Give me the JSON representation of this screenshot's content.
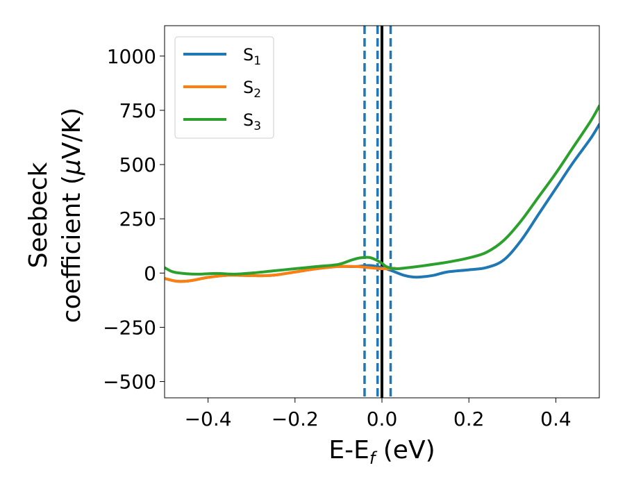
{
  "chart_data": {
    "type": "line",
    "xlabel": "E-E",
    "xlabel_sub": "f",
    "xlabel_unit": " (eV)",
    "ylabel_line1": "Seebeck",
    "ylabel_line2_a": "coefficient  (",
    "ylabel_line2_mu": "μ",
    "ylabel_line2_b": "V/K)",
    "xlim": [
      -0.5,
      0.5
    ],
    "ylim": [
      -575,
      1140
    ],
    "xticks": [
      -0.4,
      -0.2,
      0.0,
      0.2,
      0.4
    ],
    "xtick_labels": [
      "−0.4",
      "−0.2",
      "0.0",
      "0.2",
      "0.4"
    ],
    "yticks": [
      -500,
      -250,
      0,
      250,
      500,
      750,
      1000
    ],
    "ytick_labels": [
      "−500",
      "−250",
      "0",
      "250",
      "500",
      "750",
      "1000"
    ],
    "grid": false,
    "legend": "top-left",
    "series": [
      {
        "name": "S",
        "sub": "1",
        "color": "#1f77b4",
        "x": [
          -0.5,
          -0.47,
          -0.44,
          -0.4,
          -0.35,
          -0.3,
          -0.25,
          -0.2,
          -0.15,
          -0.1,
          -0.06,
          -0.03,
          -0.01,
          0.0,
          0.01,
          0.03,
          0.05,
          0.07,
          0.09,
          0.12,
          0.15,
          0.2,
          0.24,
          0.28,
          0.32,
          0.36,
          0.4,
          0.44,
          0.48,
          0.5
        ],
        "y": [
          -25,
          -38,
          -35,
          -20,
          -10,
          -12,
          -10,
          5,
          20,
          30,
          30,
          35,
          30,
          25,
          20,
          5,
          -10,
          -18,
          -18,
          -10,
          5,
          15,
          25,
          60,
          150,
          270,
          390,
          510,
          620,
          685
        ]
      },
      {
        "name": "S",
        "sub": "2",
        "color": "#ff7f0e",
        "x": [
          -0.5,
          -0.47,
          -0.44,
          -0.4,
          -0.35,
          -0.3,
          -0.25,
          -0.2,
          -0.15,
          -0.1,
          -0.06,
          -0.03,
          0.0,
          0.03
        ],
        "y": [
          -25,
          -38,
          -35,
          -20,
          -10,
          -12,
          -10,
          5,
          20,
          30,
          30,
          25,
          20,
          22
        ]
      },
      {
        "name": "S",
        "sub": "3",
        "color": "#2ca02c",
        "x": [
          -0.5,
          -0.48,
          -0.45,
          -0.42,
          -0.38,
          -0.34,
          -0.3,
          -0.25,
          -0.2,
          -0.15,
          -0.1,
          -0.07,
          -0.05,
          -0.03,
          -0.015,
          0.0,
          0.01,
          0.03,
          0.06,
          0.1,
          0.15,
          0.2,
          0.24,
          0.28,
          0.32,
          0.36,
          0.4,
          0.44,
          0.48,
          0.5
        ],
        "y": [
          25,
          5,
          -3,
          -5,
          -2,
          -5,
          0,
          10,
          20,
          30,
          40,
          60,
          70,
          72,
          62,
          45,
          30,
          20,
          25,
          35,
          50,
          70,
          95,
          150,
          240,
          350,
          460,
          580,
          700,
          770
        ]
      }
    ],
    "vlines": [
      {
        "x": -0.04,
        "style": "dashed",
        "color": "#1f77b4"
      },
      {
        "x": -0.01,
        "style": "dashed",
        "color": "#1f77b4"
      },
      {
        "x": 0.02,
        "style": "dashed",
        "color": "#1f77b4"
      },
      {
        "x": 0.0,
        "style": "solid",
        "color": "#000000"
      }
    ]
  }
}
